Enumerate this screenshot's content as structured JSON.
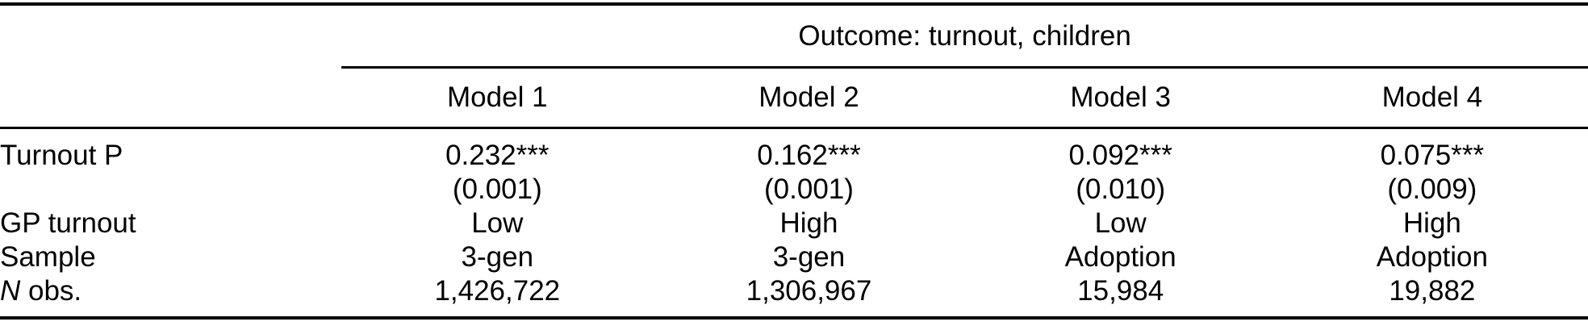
{
  "table": {
    "spanner_header": "Outcome: turnout, children",
    "column_headers": [
      "Model 1",
      "Model 2",
      "Model 3",
      "Model 4"
    ],
    "rows": [
      {
        "label": "Turnout P",
        "values": [
          "0.232***",
          "0.162***",
          "0.092***",
          "0.075***"
        ]
      },
      {
        "label": "",
        "values": [
          "(0.001)",
          "(0.001)",
          "(0.010)",
          "(0.009)"
        ]
      },
      {
        "label": "GP turnout",
        "values": [
          "Low",
          "High",
          "Low",
          "High"
        ]
      },
      {
        "label": "Sample",
        "values": [
          "3-gen",
          "3-gen",
          "Adoption",
          "Adoption"
        ]
      },
      {
        "label_italic": "N",
        "label": " obs.",
        "values": [
          "1,426,722",
          "1,306,967",
          "15,984",
          "19,882"
        ]
      }
    ],
    "colors": {
      "text": "#000000",
      "background": "#ffffff",
      "rule": "#000000"
    }
  }
}
